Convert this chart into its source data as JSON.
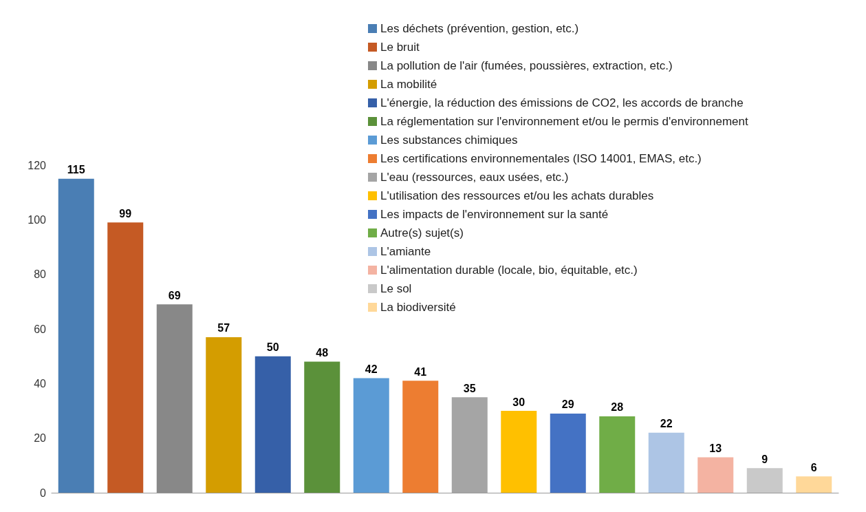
{
  "chart_data": {
    "type": "bar",
    "categories": [
      null,
      null,
      null,
      null,
      null,
      null,
      null,
      null,
      null,
      null,
      null,
      null,
      null,
      null,
      null,
      null
    ],
    "series": [
      {
        "name": "Les déchets (prévention, gestion, etc.)",
        "color": "#4a7eb4",
        "values": [
          115,
          null,
          null,
          null,
          null,
          null,
          null,
          null,
          null,
          null,
          null,
          null,
          null,
          null,
          null,
          null
        ]
      },
      {
        "name": "Le bruit",
        "color": "#c55a24",
        "values": [
          null,
          99,
          null,
          null,
          null,
          null,
          null,
          null,
          null,
          null,
          null,
          null,
          null,
          null,
          null,
          null
        ]
      },
      {
        "name": "La pollution de l'air (fumées, poussières, extraction, etc.)",
        "color": "#888888",
        "values": [
          null,
          null,
          69,
          null,
          null,
          null,
          null,
          null,
          null,
          null,
          null,
          null,
          null,
          null,
          null,
          null
        ]
      },
      {
        "name": "La mobilité",
        "color": "#d49d00",
        "values": [
          null,
          null,
          null,
          57,
          null,
          null,
          null,
          null,
          null,
          null,
          null,
          null,
          null,
          null,
          null,
          null
        ]
      },
      {
        "name": "L'énergie, la réduction des émissions de CO2, les accords de branche",
        "color": "#3660a8",
        "values": [
          null,
          null,
          null,
          null,
          50,
          null,
          null,
          null,
          null,
          null,
          null,
          null,
          null,
          null,
          null,
          null
        ]
      },
      {
        "name": "La réglementation sur l'environnement et/ou le permis d'environnement",
        "color": "#5b913a",
        "values": [
          null,
          null,
          null,
          null,
          null,
          48,
          null,
          null,
          null,
          null,
          null,
          null,
          null,
          null,
          null,
          null
        ]
      },
      {
        "name": "Les substances chimiques",
        "color": "#5b9bd5",
        "values": [
          null,
          null,
          null,
          null,
          null,
          null,
          42,
          null,
          null,
          null,
          null,
          null,
          null,
          null,
          null,
          null
        ]
      },
      {
        "name": "Les certifications environnementales (ISO 14001, EMAS, etc.)",
        "color": "#ed7d31",
        "values": [
          null,
          null,
          null,
          null,
          null,
          null,
          null,
          41,
          null,
          null,
          null,
          null,
          null,
          null,
          null,
          null
        ]
      },
      {
        "name": "L'eau (ressources, eaux usées, etc.)",
        "color": "#a5a5a5",
        "values": [
          null,
          null,
          null,
          null,
          null,
          null,
          null,
          null,
          35,
          null,
          null,
          null,
          null,
          null,
          null,
          null
        ]
      },
      {
        "name": "L'utilisation des ressources et/ou les achats durables",
        "color": "#ffc000",
        "values": [
          null,
          null,
          null,
          null,
          null,
          null,
          null,
          null,
          null,
          30,
          null,
          null,
          null,
          null,
          null,
          null
        ]
      },
      {
        "name": "Les impacts de l'environnement sur la santé",
        "color": "#4472c4",
        "values": [
          null,
          null,
          null,
          null,
          null,
          null,
          null,
          null,
          null,
          null,
          29,
          null,
          null,
          null,
          null,
          null
        ]
      },
      {
        "name": "Autre(s) sujet(s)",
        "color": "#70ad47",
        "values": [
          null,
          null,
          null,
          null,
          null,
          null,
          null,
          null,
          null,
          null,
          null,
          28,
          null,
          null,
          null,
          null
        ]
      },
      {
        "name": "L'amiante",
        "color": "#adc5e5",
        "values": [
          null,
          null,
          null,
          null,
          null,
          null,
          null,
          null,
          null,
          null,
          null,
          null,
          22,
          null,
          null,
          null
        ]
      },
      {
        "name": "L'alimentation durable (locale, bio, équitable, etc.)",
        "color": "#f4b3a2",
        "values": [
          null,
          null,
          null,
          null,
          null,
          null,
          null,
          null,
          null,
          null,
          null,
          null,
          null,
          13,
          null,
          null
        ]
      },
      {
        "name": "Le sol",
        "color": "#c9c9c9",
        "values": [
          null,
          null,
          null,
          null,
          null,
          null,
          null,
          null,
          null,
          null,
          null,
          null,
          null,
          null,
          9,
          null
        ]
      },
      {
        "name": "La biodiversité",
        "color": "#ffd899",
        "values": [
          null,
          null,
          null,
          null,
          null,
          null,
          null,
          null,
          null,
          null,
          null,
          null,
          null,
          null,
          null,
          6
        ]
      }
    ],
    "ylim": [
      0,
      120
    ],
    "yticks": [
      0,
      20,
      40,
      60,
      80,
      100,
      120
    ],
    "grid": false,
    "legend": "top right",
    "data_labels": true
  }
}
